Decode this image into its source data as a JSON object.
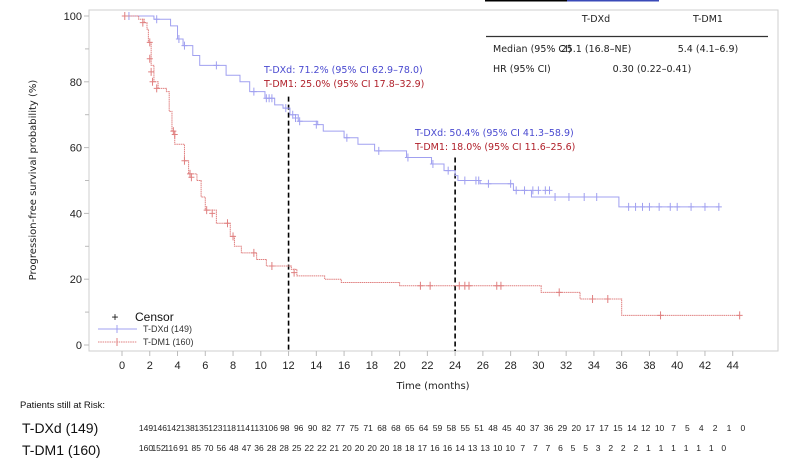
{
  "chart_data": {
    "type": "line",
    "subtype": "kaplan-meier",
    "title": "",
    "xlabel": "Time (months)",
    "ylabel": "Progression-free survival probability (%)",
    "xlim": [
      -2,
      47
    ],
    "ylim": [
      0,
      100
    ],
    "xticks": [
      0,
      2,
      4,
      6,
      8,
      10,
      12,
      14,
      16,
      18,
      20,
      22,
      24,
      26,
      28,
      30,
      32,
      34,
      36,
      38,
      40,
      42,
      44
    ],
    "yticks": [
      0,
      20,
      40,
      60,
      80,
      100
    ],
    "grid": false,
    "legend": {
      "position": "bottom-left",
      "censor_label": "Censor",
      "censor_symbol": "+",
      "entries": [
        "T-DXd (149)",
        "T-DM1 (160)"
      ]
    },
    "series": [
      {
        "name": "T-DXd (149)",
        "color": "#8080e8",
        "steps": [
          [
            0,
            100
          ],
          [
            2.3,
            99
          ],
          [
            3.5,
            97
          ],
          [
            4.0,
            93
          ],
          [
            4.4,
            91
          ],
          [
            5.1,
            88
          ],
          [
            5.6,
            85
          ],
          [
            7.5,
            82
          ],
          [
            8.5,
            80
          ],
          [
            9.2,
            77
          ],
          [
            10.3,
            75
          ],
          [
            11.0,
            73
          ],
          [
            11.6,
            72
          ],
          [
            12.1,
            70
          ],
          [
            12.7,
            68
          ],
          [
            14.1,
            67
          ],
          [
            14.5,
            65
          ],
          [
            16.0,
            63
          ],
          [
            17.0,
            61
          ],
          [
            18.2,
            59
          ],
          [
            20.5,
            57
          ],
          [
            22.3,
            55
          ],
          [
            23.2,
            53
          ],
          [
            24.0,
            51.5
          ],
          [
            24.2,
            50
          ],
          [
            25.8,
            49
          ],
          [
            28.2,
            47
          ],
          [
            29.5,
            45
          ],
          [
            35.8,
            42
          ],
          [
            43.0,
            42
          ]
        ],
        "censors": [
          [
            0.5,
            100
          ],
          [
            2.5,
            99
          ],
          [
            4.1,
            93
          ],
          [
            4.5,
            91
          ],
          [
            6.8,
            85
          ],
          [
            9.5,
            77
          ],
          [
            10.4,
            75
          ],
          [
            10.6,
            75
          ],
          [
            10.8,
            75
          ],
          [
            11.8,
            72
          ],
          [
            12.3,
            70
          ],
          [
            12.5,
            69
          ],
          [
            12.8,
            68
          ],
          [
            14.0,
            67
          ],
          [
            16.2,
            63
          ],
          [
            18.5,
            59
          ],
          [
            20.6,
            57
          ],
          [
            22.4,
            55
          ],
          [
            23.5,
            53
          ],
          [
            24.7,
            50
          ],
          [
            25.5,
            50
          ],
          [
            25.7,
            50
          ],
          [
            26.4,
            49
          ],
          [
            28.0,
            49
          ],
          [
            28.4,
            47
          ],
          [
            29.0,
            47
          ],
          [
            29.6,
            47
          ],
          [
            30.0,
            47
          ],
          [
            30.5,
            47
          ],
          [
            30.8,
            47
          ],
          [
            31.2,
            45
          ],
          [
            32.2,
            45
          ],
          [
            33.3,
            45
          ],
          [
            34.2,
            45
          ],
          [
            36.5,
            42
          ],
          [
            37.0,
            42
          ],
          [
            37.5,
            42
          ],
          [
            38.0,
            42
          ],
          [
            38.7,
            42
          ],
          [
            39.5,
            42
          ],
          [
            40.0,
            42
          ],
          [
            41.0,
            42
          ],
          [
            42.0,
            42
          ],
          [
            43.0,
            42
          ]
        ]
      },
      {
        "name": "T-DM1 (160)",
        "color": "#e07070",
        "steps": [
          [
            0,
            100
          ],
          [
            1.2,
            99
          ],
          [
            1.6,
            98
          ],
          [
            1.8,
            96
          ],
          [
            1.9,
            92
          ],
          [
            2.1,
            85
          ],
          [
            2.3,
            80
          ],
          [
            2.6,
            78
          ],
          [
            3.2,
            77
          ],
          [
            3.4,
            71
          ],
          [
            3.6,
            65
          ],
          [
            3.8,
            61
          ],
          [
            4.5,
            56
          ],
          [
            4.8,
            52
          ],
          [
            5.4,
            50
          ],
          [
            5.7,
            45
          ],
          [
            6.0,
            41
          ],
          [
            6.8,
            37
          ],
          [
            7.8,
            33
          ],
          [
            8.1,
            30
          ],
          [
            8.6,
            28
          ],
          [
            9.7,
            26
          ],
          [
            10.4,
            24
          ],
          [
            12.2,
            23
          ],
          [
            12.6,
            21
          ],
          [
            14.6,
            20
          ],
          [
            15.8,
            19
          ],
          [
            20.0,
            18
          ],
          [
            30.2,
            16
          ],
          [
            33.0,
            14
          ],
          [
            36.0,
            9
          ],
          [
            44.5,
            9
          ]
        ],
        "censors": [
          [
            0.2,
            100
          ],
          [
            1.5,
            98
          ],
          [
            2.0,
            92
          ],
          [
            2.0,
            87
          ],
          [
            2.1,
            83
          ],
          [
            2.2,
            80
          ],
          [
            2.5,
            78
          ],
          [
            3.7,
            65
          ],
          [
            3.8,
            64
          ],
          [
            4.5,
            56
          ],
          [
            4.9,
            52
          ],
          [
            5.0,
            51
          ],
          [
            6.1,
            41
          ],
          [
            6.5,
            40
          ],
          [
            7.6,
            37
          ],
          [
            8.0,
            33
          ],
          [
            9.5,
            28
          ],
          [
            10.8,
            24
          ],
          [
            12.4,
            22
          ],
          [
            21.5,
            18
          ],
          [
            22.2,
            18
          ],
          [
            24.3,
            18
          ],
          [
            24.7,
            18
          ],
          [
            25.0,
            18
          ],
          [
            27.0,
            18
          ],
          [
            27.3,
            18
          ],
          [
            31.5,
            16
          ],
          [
            33.9,
            14
          ],
          [
            35.0,
            14
          ],
          [
            38.8,
            9
          ],
          [
            44.5,
            9
          ]
        ]
      }
    ],
    "reference_lines": [
      {
        "x": 12,
        "style": "dashed",
        "color": "#000000"
      },
      {
        "x": 24,
        "style": "dashed",
        "color": "#000000"
      }
    ],
    "annotations": [
      {
        "at_month": 12,
        "lines": [
          {
            "text": "T-DXd: 71.2% (95% CI 62.9–78.0)",
            "color": "#4a4ad0"
          },
          {
            "text": "T-DM1: 25.0% (95% CI 17.8–32.9)",
            "color": "#b0202a"
          }
        ]
      },
      {
        "at_month": 24,
        "lines": [
          {
            "text": "T-DXd: 50.4% (95% CI 41.3–58.9)",
            "color": "#4a4ad0"
          },
          {
            "text": "T-DM1: 18.0% (95% CI 11.6–25.6)",
            "color": "#b0202a"
          }
        ]
      }
    ],
    "summary_table": {
      "header": [
        "",
        "T-DXd",
        "T-DM1"
      ],
      "rows": [
        [
          "Median (95% CI)",
          "25.1 (16.8–NE)",
          "5.4 (4.1–6.9)"
        ],
        [
          "HR (95% CI)",
          "0.30 (0.22–0.41)"
        ]
      ]
    },
    "at_risk": {
      "title": "Patients still at Risk:",
      "rows": [
        {
          "label": "T-DXd (149)",
          "values": [
            149,
            146,
            142,
            138,
            135,
            123,
            118,
            114,
            113,
            106,
            98,
            96,
            90,
            82,
            77,
            75,
            71,
            68,
            68,
            65,
            64,
            59,
            58,
            55,
            51,
            48,
            45,
            40,
            37,
            36,
            29,
            20,
            17,
            17,
            15,
            14,
            12,
            10,
            7,
            5,
            4,
            2,
            1,
            0
          ]
        },
        {
          "label": "T-DM1 (160)",
          "values": [
            160,
            152,
            116,
            91,
            85,
            70,
            56,
            48,
            47,
            36,
            28,
            28,
            25,
            22,
            22,
            21,
            20,
            20,
            20,
            20,
            18,
            18,
            17,
            16,
            16,
            14,
            13,
            13,
            10,
            10,
            7,
            7,
            7,
            6,
            5,
            5,
            3,
            2,
            2,
            2,
            1,
            1,
            1,
            1,
            1,
            1,
            0
          ]
        }
      ]
    }
  }
}
